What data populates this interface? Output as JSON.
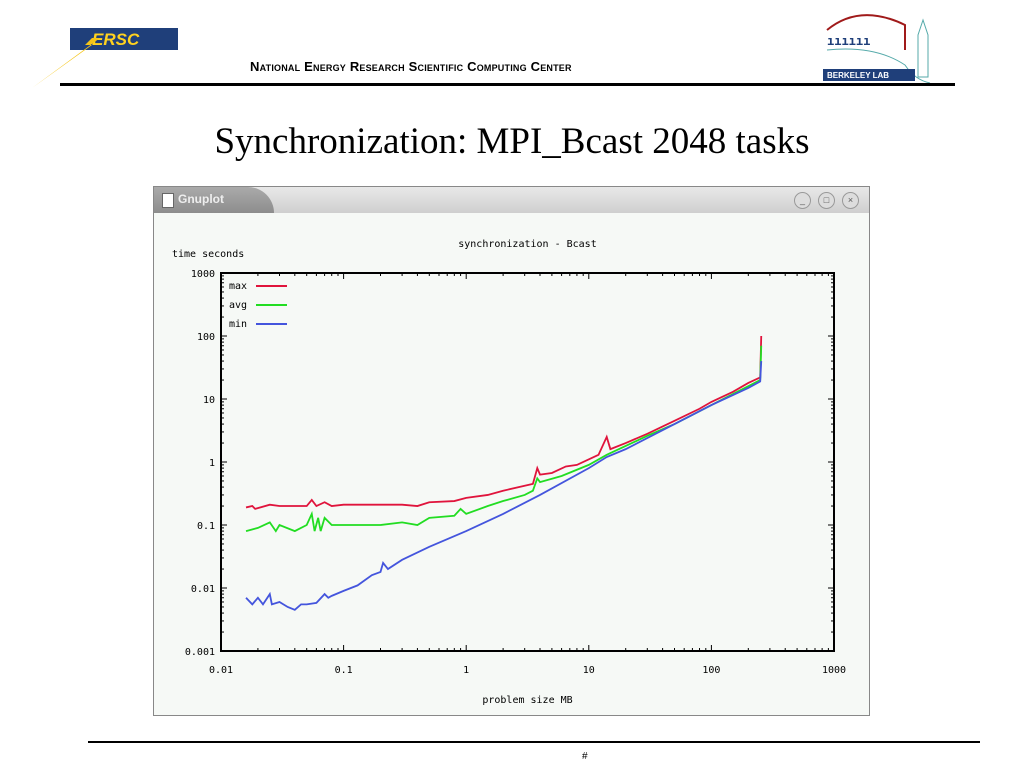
{
  "header": {
    "org": "National Energy Research Scientific Computing Center",
    "logo_left": "NERSC",
    "logo_right": "Berkeley Lab"
  },
  "slide": {
    "title": "Synchronization: MPI_Bcast 2048 tasks",
    "page": "#"
  },
  "window": {
    "title": "Gnuplot",
    "buttons": [
      "minimize",
      "maximize",
      "close"
    ]
  },
  "chart_data": {
    "type": "line",
    "title": "synchronization - Bcast",
    "xlabel": "problem size MB",
    "ylabel": "time seconds",
    "xscale": "log",
    "yscale": "log",
    "xlim": [
      0.01,
      1000
    ],
    "ylim": [
      0.001,
      1000
    ],
    "xticks": [
      "0.01",
      "0.1",
      "1",
      "10",
      "100",
      "1000"
    ],
    "yticks": [
      "0.001",
      "0.01",
      "0.1",
      "1",
      "10",
      "100",
      "1000"
    ],
    "legend": "top-left",
    "grid": false,
    "series": [
      {
        "name": "max",
        "color": "#e0143c",
        "points": [
          [
            0.016,
            0.19
          ],
          [
            0.018,
            0.2
          ],
          [
            0.019,
            0.18
          ],
          [
            0.025,
            0.21
          ],
          [
            0.03,
            0.2
          ],
          [
            0.05,
            0.2
          ],
          [
            0.055,
            0.25
          ],
          [
            0.06,
            0.2
          ],
          [
            0.07,
            0.23
          ],
          [
            0.08,
            0.2
          ],
          [
            0.1,
            0.21
          ],
          [
            0.2,
            0.21
          ],
          [
            0.3,
            0.21
          ],
          [
            0.4,
            0.2
          ],
          [
            0.5,
            0.23
          ],
          [
            0.8,
            0.24
          ],
          [
            1,
            0.27
          ],
          [
            1.5,
            0.3
          ],
          [
            2,
            0.35
          ],
          [
            3,
            0.42
          ],
          [
            3.5,
            0.45
          ],
          [
            3.8,
            0.8
          ],
          [
            4,
            0.63
          ],
          [
            5,
            0.67
          ],
          [
            6.5,
            0.85
          ],
          [
            8,
            0.9
          ],
          [
            12,
            1.3
          ],
          [
            14,
            2.5
          ],
          [
            15,
            1.6
          ],
          [
            20,
            2.0
          ],
          [
            30,
            2.8
          ],
          [
            50,
            4.5
          ],
          [
            80,
            7
          ],
          [
            100,
            9
          ],
          [
            150,
            13
          ],
          [
            200,
            18
          ],
          [
            250,
            22
          ],
          [
            255,
            100
          ]
        ]
      },
      {
        "name": "avg",
        "color": "#22dd22",
        "points": [
          [
            0.016,
            0.08
          ],
          [
            0.02,
            0.09
          ],
          [
            0.025,
            0.11
          ],
          [
            0.028,
            0.08
          ],
          [
            0.03,
            0.1
          ],
          [
            0.04,
            0.08
          ],
          [
            0.05,
            0.1
          ],
          [
            0.055,
            0.15
          ],
          [
            0.058,
            0.08
          ],
          [
            0.062,
            0.13
          ],
          [
            0.065,
            0.08
          ],
          [
            0.07,
            0.13
          ],
          [
            0.08,
            0.1
          ],
          [
            0.1,
            0.1
          ],
          [
            0.15,
            0.1
          ],
          [
            0.2,
            0.1
          ],
          [
            0.3,
            0.11
          ],
          [
            0.4,
            0.1
          ],
          [
            0.5,
            0.13
          ],
          [
            0.8,
            0.14
          ],
          [
            0.9,
            0.18
          ],
          [
            1,
            0.15
          ],
          [
            1.5,
            0.2
          ],
          [
            2,
            0.24
          ],
          [
            3,
            0.3
          ],
          [
            3.5,
            0.35
          ],
          [
            3.8,
            0.55
          ],
          [
            4,
            0.48
          ],
          [
            6,
            0.6
          ],
          [
            10,
            0.9
          ],
          [
            14,
            1.3
          ],
          [
            20,
            1.8
          ],
          [
            30,
            2.6
          ],
          [
            50,
            4
          ],
          [
            100,
            8
          ],
          [
            200,
            16
          ],
          [
            250,
            20
          ],
          [
            255,
            70
          ]
        ]
      },
      {
        "name": "min",
        "color": "#4455dd",
        "points": [
          [
            0.016,
            0.007
          ],
          [
            0.018,
            0.0055
          ],
          [
            0.02,
            0.007
          ],
          [
            0.022,
            0.0055
          ],
          [
            0.025,
            0.008
          ],
          [
            0.026,
            0.0055
          ],
          [
            0.03,
            0.006
          ],
          [
            0.035,
            0.005
          ],
          [
            0.04,
            0.0045
          ],
          [
            0.045,
            0.0055
          ],
          [
            0.05,
            0.0055
          ],
          [
            0.06,
            0.0058
          ],
          [
            0.07,
            0.008
          ],
          [
            0.075,
            0.007
          ],
          [
            0.08,
            0.0075
          ],
          [
            0.1,
            0.009
          ],
          [
            0.13,
            0.011
          ],
          [
            0.17,
            0.016
          ],
          [
            0.2,
            0.018
          ],
          [
            0.21,
            0.025
          ],
          [
            0.23,
            0.02
          ],
          [
            0.3,
            0.028
          ],
          [
            0.5,
            0.045
          ],
          [
            1,
            0.08
          ],
          [
            2,
            0.15
          ],
          [
            4,
            0.3
          ],
          [
            10,
            0.8
          ],
          [
            14,
            1.2
          ],
          [
            20,
            1.6
          ],
          [
            50,
            4
          ],
          [
            100,
            8
          ],
          [
            200,
            15
          ],
          [
            250,
            19
          ],
          [
            255,
            40
          ]
        ]
      }
    ]
  }
}
